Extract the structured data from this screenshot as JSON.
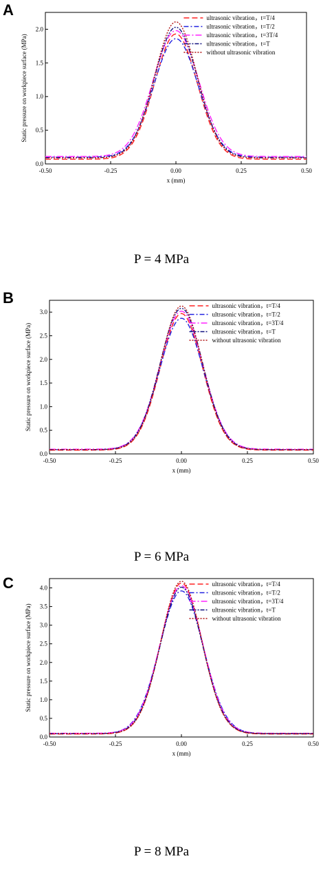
{
  "colors": {
    "T4": "#ff2020",
    "T2": "#2020e0",
    "T34": "#ff20ff",
    "T": "#101080",
    "none": "#b01010"
  },
  "chart_data": [
    {
      "panel_label": "A",
      "caption": "P = 4 MPa",
      "type": "line",
      "xlabel": "x (mm)",
      "ylabel": "Static pressure on workpiece surface (MPa)",
      "xlim": [
        -0.5,
        0.5
      ],
      "ylim": [
        0.0,
        2.25
      ],
      "xticks": [
        "-0.50",
        "-0.25",
        "0.00",
        "0.25",
        "0.50"
      ],
      "yticks": [
        "0.0",
        "0.5",
        "1.0",
        "1.5",
        "2.0"
      ],
      "ytick_values": [
        0.0,
        0.5,
        1.0,
        1.5,
        2.0
      ],
      "legend_position": "top-right",
      "series": [
        {
          "key": "T4",
          "name": "ultrasonic vibration，t=T/4",
          "peak": 1.93,
          "baseline": 0.07,
          "sigma": 0.082,
          "dash": "8,4"
        },
        {
          "key": "T2",
          "name": "ultrasonic vibration，t=T/2",
          "peak": 1.86,
          "baseline": 0.1,
          "sigma": 0.085,
          "dash": "7,3,2,3"
        },
        {
          "key": "T34",
          "name": "ultrasonic vibration，t=3T/4",
          "peak": 1.98,
          "baseline": 0.11,
          "sigma": 0.087,
          "dash": "9,3,2,3"
        },
        {
          "key": "T",
          "name": "ultrasonic vibration，t=T",
          "peak": 2.03,
          "baseline": 0.09,
          "sigma": 0.083,
          "dash": "6,2,2,2,2,2"
        },
        {
          "key": "none",
          "name": "without ultrasonic vibration",
          "peak": 2.11,
          "baseline": 0.09,
          "sigma": 0.081,
          "dash": "2,2"
        }
      ]
    },
    {
      "panel_label": "B",
      "caption": "P = 6 MPa",
      "type": "line",
      "xlabel": "x (mm)",
      "ylabel": "Static pressure on workpiece surface (MPa)",
      "xlim": [
        -0.5,
        0.5
      ],
      "ylim": [
        0.0,
        3.25
      ],
      "xticks": [
        "-0.50",
        "-0.25",
        "0.00",
        "0.25",
        "0.50"
      ],
      "yticks": [
        "0.0",
        "0.5",
        "1.0",
        "1.5",
        "2.0",
        "2.5",
        "3.0"
      ],
      "ytick_values": [
        0.0,
        0.5,
        1.0,
        1.5,
        2.0,
        2.5,
        3.0
      ],
      "legend_position": "top-right",
      "series": [
        {
          "key": "T4",
          "name": "ultrasonic vibration，t=T/4",
          "peak": 2.97,
          "baseline": 0.08,
          "sigma": 0.08,
          "dash": "8,4"
        },
        {
          "key": "T2",
          "name": "ultrasonic vibration，t=T/2",
          "peak": 2.87,
          "baseline": 0.09,
          "sigma": 0.083,
          "dash": "7,3,2,3"
        },
        {
          "key": "T34",
          "name": "ultrasonic vibration，t=3T/4",
          "peak": 3.02,
          "baseline": 0.1,
          "sigma": 0.082,
          "dash": "9,3,2,3"
        },
        {
          "key": "T",
          "name": "ultrasonic vibration，t=T",
          "peak": 3.08,
          "baseline": 0.09,
          "sigma": 0.081,
          "dash": "6,2,2,2,2,2"
        },
        {
          "key": "none",
          "name": "without ultrasonic vibration",
          "peak": 3.13,
          "baseline": 0.09,
          "sigma": 0.079,
          "dash": "2,2"
        }
      ]
    },
    {
      "panel_label": "C",
      "caption": "P = 8 MPa",
      "type": "line",
      "xlabel": "x (mm)",
      "ylabel": "Static pressure on workpiece surface (MPa)",
      "xlim": [
        -0.5,
        0.5
      ],
      "ylim": [
        0.0,
        4.25
      ],
      "xticks": [
        "-0.50",
        "-0.25",
        "0.00",
        "0.25",
        "0.50"
      ],
      "yticks": [
        "0.0",
        "0.5",
        "1.0",
        "1.5",
        "2.0",
        "2.5",
        "3.0",
        "3.5",
        "4.0"
      ],
      "ytick_values": [
        0.0,
        0.5,
        1.0,
        1.5,
        2.0,
        2.5,
        3.0,
        3.5,
        4.0
      ],
      "legend_position": "top-right",
      "series": [
        {
          "key": "T4",
          "name": "ultrasonic vibration，t=T/4",
          "peak": 4.13,
          "baseline": 0.08,
          "sigma": 0.079,
          "dash": "8,4"
        },
        {
          "key": "T2",
          "name": "ultrasonic vibration，t=T/2",
          "peak": 3.92,
          "baseline": 0.09,
          "sigma": 0.083,
          "dash": "7,3,2,3"
        },
        {
          "key": "T34",
          "name": "ultrasonic vibration，t=3T/4",
          "peak": 4.06,
          "baseline": 0.1,
          "sigma": 0.081,
          "dash": "9,3,2,3"
        },
        {
          "key": "T",
          "name": "ultrasonic vibration，t=T",
          "peak": 4.02,
          "baseline": 0.09,
          "sigma": 0.08,
          "dash": "6,2,2,2,2,2"
        },
        {
          "key": "none",
          "name": "without ultrasonic vibration",
          "peak": 4.18,
          "baseline": 0.09,
          "sigma": 0.078,
          "dash": "2,2"
        }
      ]
    }
  ]
}
